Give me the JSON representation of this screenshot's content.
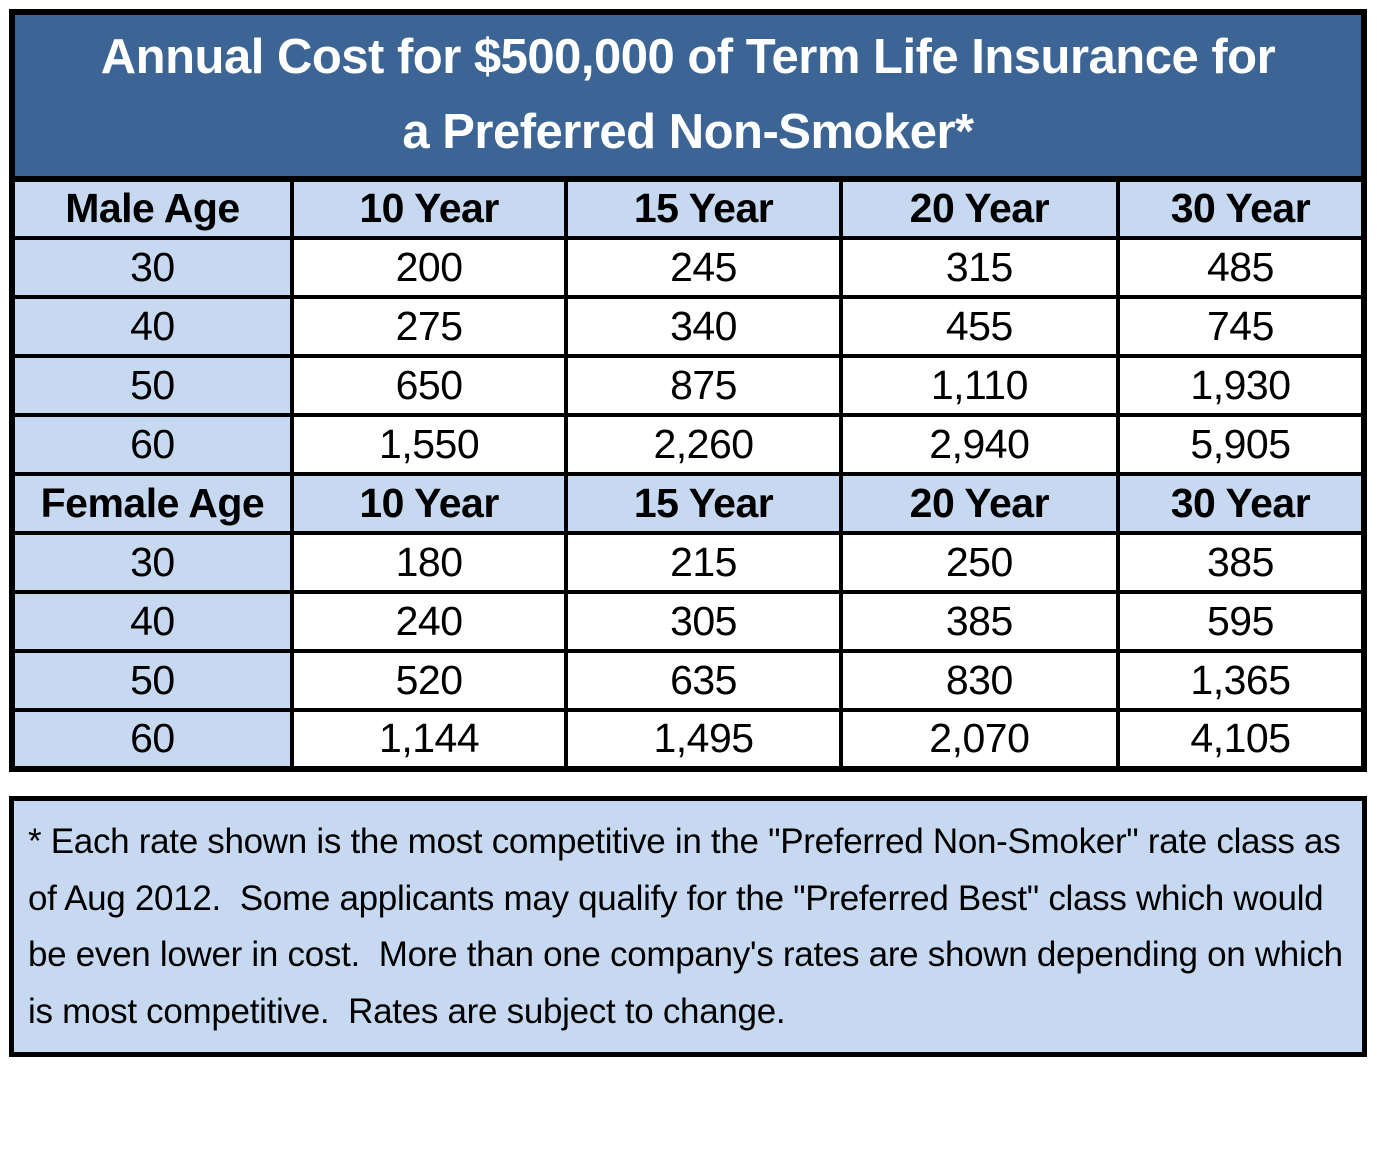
{
  "title": {
    "lines": [
      "Annual Cost for $500,000 of Term Life Insurance for",
      "a Preferred Non-Smoker*"
    ]
  },
  "chart_data": {
    "type": "table",
    "title": "Annual Cost for $500,000 of Term Life Insurance for a Preferred Non-Smoker*",
    "sections": [
      {
        "group": "Male",
        "header": [
          "Male Age",
          "10 Year",
          "15 Year",
          "20 Year",
          "30 Year"
        ],
        "rows": [
          [
            "30",
            "200",
            "245",
            "315",
            "485"
          ],
          [
            "40",
            "275",
            "340",
            "455",
            "745"
          ],
          [
            "50",
            "650",
            "875",
            "1,110",
            "1,930"
          ],
          [
            "60",
            "1,550",
            "2,260",
            "2,940",
            "5,905"
          ]
        ]
      },
      {
        "group": "Female",
        "header": [
          "Female Age",
          "10 Year",
          "15 Year",
          "20 Year",
          "30 Year"
        ],
        "rows": [
          [
            "30",
            "180",
            "215",
            "250",
            "385"
          ],
          [
            "40",
            "240",
            "305",
            "385",
            "595"
          ],
          [
            "50",
            "520",
            "635",
            "830",
            "1,365"
          ],
          [
            "60",
            "1,144",
            "1,495",
            "2,070",
            "4,105"
          ]
        ]
      }
    ]
  },
  "footnote": {
    "text": "* Each rate shown is the most competitive in the \"Preferred Non-Smoker\" rate class as of Aug 2012.  Some applicants may qualify for the \"Preferred Best\" class which would be even lower in cost.  More than one company's rates are shown depending on which is most competitive.  Rates are subject to change."
  },
  "colors": {
    "title_bg": "#3C6494",
    "title_text": "#FFFFFF",
    "light_blue": "#C7D9F1",
    "border": "#000000",
    "cell_bg": "#FFFFFF"
  }
}
